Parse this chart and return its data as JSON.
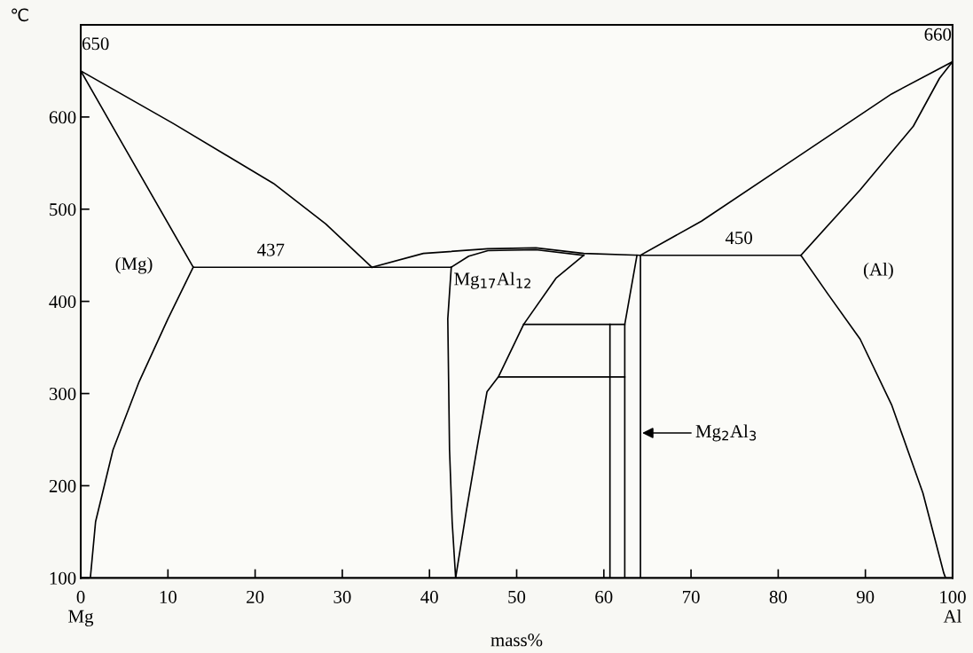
{
  "chart_data": {
    "type": "line",
    "ylabel": "℃",
    "xlabel": "mass%",
    "xlim": [
      0,
      100
    ],
    "ylim": [
      100,
      700
    ],
    "xticks": [
      {
        "value": 0,
        "label": "0\nMg"
      },
      10,
      20,
      30,
      40,
      50,
      60,
      70,
      80,
      90,
      {
        "value": 100,
        "label": "100\nAl"
      }
    ],
    "yticks": [
      100,
      200,
      300,
      400,
      500,
      600
    ],
    "grid": false,
    "marker": "none",
    "line_style": "solid",
    "series": [
      {
        "color": "#000000",
        "x": [
          0,
          10.6,
          22.1,
          28.1,
          33.4
        ],
        "values": [
          650,
          593,
          528,
          484,
          437
        ]
      },
      {
        "color": "#000000",
        "x": [
          0,
          4.9,
          12.9
        ],
        "values": [
          650,
          569,
          437
        ]
      },
      {
        "color": "#000000",
        "x": [
          12.9,
          10,
          6.7,
          3.7,
          1.7,
          1.1
        ],
        "values": [
          437,
          381,
          313,
          239,
          161,
          100
        ]
      },
      {
        "color": "#000000",
        "x": [
          12.9,
          42.5
        ],
        "values": [
          437,
          437
        ]
      },
      {
        "color": "#000000",
        "x": [
          33.4,
          39.3,
          46.7,
          52.2,
          57.7,
          64.2,
          82.6
        ],
        "values": [
          437,
          452,
          457,
          458,
          452,
          450,
          450
        ]
      },
      {
        "color": "#000000",
        "x": [
          42.5,
          44.5,
          46.7,
          52.2,
          57.7
        ],
        "values": [
          437,
          449,
          455,
          456,
          450
        ]
      },
      {
        "color": "#000000",
        "x": [
          42.5,
          42.1,
          42.3,
          42.6,
          43.0
        ],
        "values": [
          437,
          381,
          239,
          161,
          100
        ]
      },
      {
        "color": "#000000",
        "x": [
          43.0,
          44.2,
          45.6,
          46.6,
          47.9,
          50.8,
          54.5,
          57.7
        ],
        "values": [
          100,
          171,
          249,
          302,
          318,
          375,
          425,
          450
        ]
      },
      {
        "color": "#000000",
        "x": [
          50.8,
          62.4
        ],
        "values": [
          375,
          375
        ]
      },
      {
        "color": "#000000",
        "x": [
          47.9,
          62.4
        ],
        "values": [
          318,
          318
        ]
      },
      {
        "color": "#000000",
        "x": [
          60.7,
          60.7
        ],
        "values": [
          100,
          375
        ]
      },
      {
        "color": "#000000",
        "x": [
          62.4,
          62.4,
          63.8
        ],
        "values": [
          100,
          375,
          450
        ]
      },
      {
        "color": "#000000",
        "x": [
          64.2,
          64.2
        ],
        "values": [
          100,
          450
        ]
      },
      {
        "color": "#000000",
        "x": [
          64.2,
          71.2,
          82.1,
          93,
          100
        ],
        "values": [
          450,
          487,
          556,
          625,
          660
        ]
      },
      {
        "color": "#000000",
        "x": [
          82.6,
          89.4,
          95.5,
          98.5,
          100
        ],
        "values": [
          450,
          521,
          590,
          642,
          660
        ]
      },
      {
        "color": "#000000",
        "x": [
          82.6,
          85.7,
          89.4,
          93,
          96.6,
          99,
          99.2
        ],
        "values": [
          450,
          408,
          359,
          288,
          192,
          105,
          100
        ]
      }
    ],
    "annotations": [
      {
        "text": "650",
        "x": 0,
        "y": 650
      },
      {
        "text": "660",
        "x": 100,
        "y": 660
      },
      {
        "text": "437",
        "x": 21.8,
        "y": 437
      },
      {
        "text": "450",
        "x": 75.5,
        "y": 450
      },
      "(Mg)",
      "(Al)",
      {
        "text": "Mg$_{17}$Al$_{12}$",
        "x": 42.5,
        "y": 437
      },
      "Mg$_{2}$Al$_{3}$"
    ]
  }
}
